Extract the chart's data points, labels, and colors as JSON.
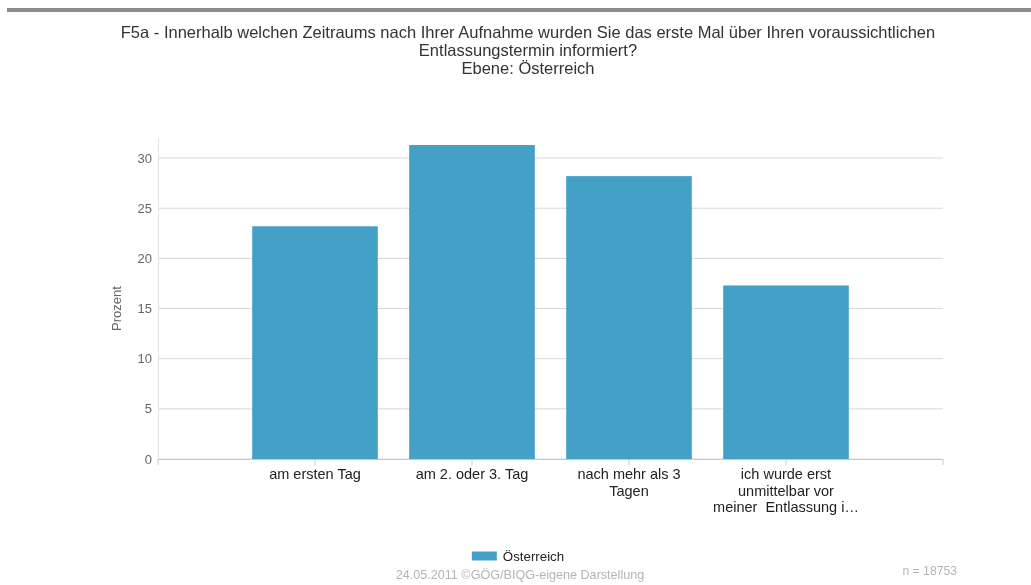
{
  "chart_data": {
    "type": "bar",
    "title": "F5a - Innerhalb welchen Zeitraums nach Ihrer Aufnahme wurden Sie das erste Mal über Ihren voraussichtlichen Entlassungstermin informiert?",
    "subtitle": "Ebene: Österreich",
    "ylabel": "Prozent",
    "categories": [
      "am ersten Tag",
      "am 2. oder 3. Tag",
      "nach mehr als 3 Tagen",
      "ich wurde erst unmittelbar vor meiner  Entlassung i…"
    ],
    "series": [
      {
        "name": "Österreich",
        "color": "#44a0c6",
        "values": [
          23.2,
          31.3,
          28.2,
          17.3
        ]
      }
    ],
    "ylim": [
      0,
      32
    ],
    "yticks": [
      0,
      5,
      10,
      15,
      20,
      25,
      30
    ],
    "grid": "y",
    "legend": "bottom",
    "annotations": [
      "24.05.2011 ©GÖG/BIQG-eigene Darstellung",
      "n = 18753"
    ]
  }
}
